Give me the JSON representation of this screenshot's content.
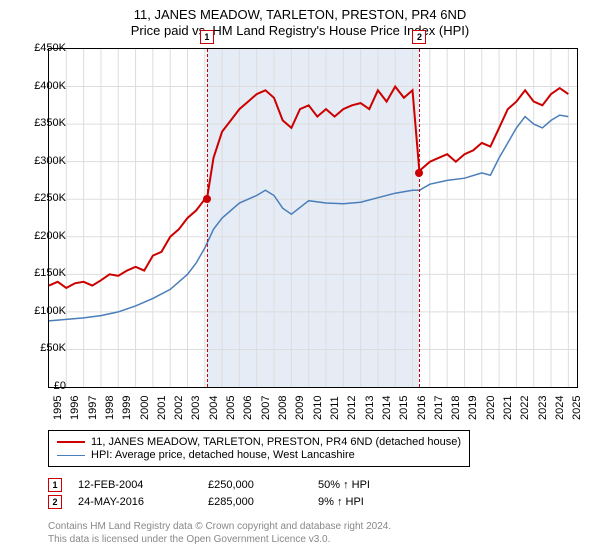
{
  "title": {
    "line1": "11, JANES MEADOW, TARLETON, PRESTON, PR4 6ND",
    "line2": "Price paid vs. HM Land Registry's House Price Index (HPI)",
    "fontsize": 13
  },
  "chart": {
    "type": "line",
    "background_color": "#ffffff",
    "shaded_color": "#e6ecf5",
    "grid_color": "#dddddd",
    "border_color": "#000000",
    "x": {
      "min": 1995,
      "max": 2025.5,
      "ticks": [
        1995,
        1996,
        1997,
        1998,
        1999,
        2000,
        2001,
        2002,
        2003,
        2004,
        2005,
        2006,
        2007,
        2008,
        2009,
        2010,
        2011,
        2012,
        2013,
        2014,
        2015,
        2016,
        2017,
        2018,
        2019,
        2020,
        2021,
        2022,
        2023,
        2024,
        2025
      ]
    },
    "y": {
      "min": 0,
      "max": 450000,
      "ticks": [
        0,
        50000,
        100000,
        150000,
        200000,
        250000,
        300000,
        350000,
        400000,
        450000
      ],
      "labels": [
        "£0",
        "£50K",
        "£100K",
        "£150K",
        "£200K",
        "£250K",
        "£300K",
        "£350K",
        "£400K",
        "£450K"
      ]
    },
    "shaded_range": {
      "x0": 2004.12,
      "x1": 2016.4
    },
    "series": [
      {
        "id": "property",
        "label": "11, JANES MEADOW, TARLETON, PRESTON, PR4 6ND (detached house)",
        "color": "#cc0000",
        "width": 2,
        "data": [
          [
            1995,
            135000
          ],
          [
            1995.5,
            140000
          ],
          [
            1996,
            132000
          ],
          [
            1996.5,
            138000
          ],
          [
            1997,
            140000
          ],
          [
            1997.5,
            135000
          ],
          [
            1998,
            142000
          ],
          [
            1998.5,
            150000
          ],
          [
            1999,
            148000
          ],
          [
            1999.5,
            155000
          ],
          [
            2000,
            160000
          ],
          [
            2000.5,
            155000
          ],
          [
            2001,
            175000
          ],
          [
            2001.5,
            180000
          ],
          [
            2002,
            200000
          ],
          [
            2002.5,
            210000
          ],
          [
            2003,
            225000
          ],
          [
            2003.5,
            235000
          ],
          [
            2004,
            250000
          ],
          [
            2004.12,
            250000
          ],
          [
            2004.5,
            305000
          ],
          [
            2005,
            340000
          ],
          [
            2005.5,
            355000
          ],
          [
            2006,
            370000
          ],
          [
            2006.5,
            380000
          ],
          [
            2007,
            390000
          ],
          [
            2007.5,
            395000
          ],
          [
            2008,
            385000
          ],
          [
            2008.5,
            355000
          ],
          [
            2009,
            345000
          ],
          [
            2009.5,
            370000
          ],
          [
            2010,
            375000
          ],
          [
            2010.5,
            360000
          ],
          [
            2011,
            370000
          ],
          [
            2011.5,
            360000
          ],
          [
            2012,
            370000
          ],
          [
            2012.5,
            375000
          ],
          [
            2013,
            378000
          ],
          [
            2013.5,
            370000
          ],
          [
            2014,
            395000
          ],
          [
            2014.5,
            380000
          ],
          [
            2015,
            400000
          ],
          [
            2015.5,
            385000
          ],
          [
            2016,
            395000
          ],
          [
            2016.4,
            285000
          ],
          [
            2016.5,
            290000
          ],
          [
            2017,
            300000
          ],
          [
            2017.5,
            305000
          ],
          [
            2018,
            310000
          ],
          [
            2018.5,
            300000
          ],
          [
            2019,
            310000
          ],
          [
            2019.5,
            315000
          ],
          [
            2020,
            325000
          ],
          [
            2020.5,
            320000
          ],
          [
            2021,
            345000
          ],
          [
            2021.5,
            370000
          ],
          [
            2022,
            380000
          ],
          [
            2022.5,
            395000
          ],
          [
            2023,
            380000
          ],
          [
            2023.5,
            375000
          ],
          [
            2024,
            390000
          ],
          [
            2024.5,
            398000
          ],
          [
            2025,
            390000
          ]
        ]
      },
      {
        "id": "hpi",
        "label": "HPI: Average price, detached house, West Lancashire",
        "color": "#4a7ebb",
        "width": 1.5,
        "data": [
          [
            1995,
            88000
          ],
          [
            1996,
            90000
          ],
          [
            1997,
            92000
          ],
          [
            1998,
            95000
          ],
          [
            1999,
            100000
          ],
          [
            2000,
            108000
          ],
          [
            2001,
            118000
          ],
          [
            2002,
            130000
          ],
          [
            2003,
            150000
          ],
          [
            2003.5,
            165000
          ],
          [
            2004,
            185000
          ],
          [
            2004.5,
            210000
          ],
          [
            2005,
            225000
          ],
          [
            2005.5,
            235000
          ],
          [
            2006,
            245000
          ],
          [
            2007,
            255000
          ],
          [
            2007.5,
            262000
          ],
          [
            2008,
            255000
          ],
          [
            2008.5,
            238000
          ],
          [
            2009,
            230000
          ],
          [
            2010,
            248000
          ],
          [
            2011,
            245000
          ],
          [
            2012,
            244000
          ],
          [
            2013,
            246000
          ],
          [
            2014,
            252000
          ],
          [
            2015,
            258000
          ],
          [
            2016,
            262000
          ],
          [
            2016.4,
            262000
          ],
          [
            2017,
            270000
          ],
          [
            2018,
            275000
          ],
          [
            2019,
            278000
          ],
          [
            2020,
            285000
          ],
          [
            2020.5,
            282000
          ],
          [
            2021,
            305000
          ],
          [
            2021.5,
            325000
          ],
          [
            2022,
            345000
          ],
          [
            2022.5,
            360000
          ],
          [
            2023,
            350000
          ],
          [
            2023.5,
            345000
          ],
          [
            2024,
            355000
          ],
          [
            2024.5,
            362000
          ],
          [
            2025,
            360000
          ]
        ]
      }
    ],
    "markers": [
      {
        "n": "1",
        "x": 2004.12,
        "y": 250000
      },
      {
        "n": "2",
        "x": 2016.4,
        "y": 285000
      }
    ]
  },
  "legend": {
    "border_color": "#000000",
    "fontsize": 11
  },
  "events": [
    {
      "n": "1",
      "date": "12-FEB-2004",
      "price": "£250,000",
      "delta": "50% ↑ HPI"
    },
    {
      "n": "2",
      "date": "24-MAY-2016",
      "price": "£285,000",
      "delta": "9% ↑ HPI"
    }
  ],
  "footer": {
    "line1": "Contains HM Land Registry data © Crown copyright and database right 2024.",
    "line2": "This data is licensed under the Open Government Licence v3.0.",
    "color": "#888888",
    "fontsize": 10
  }
}
